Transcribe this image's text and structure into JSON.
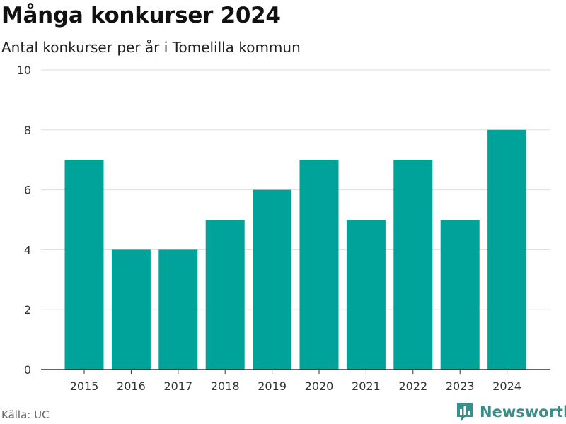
{
  "title": "Många konkurser 2024",
  "subtitle": "Antal konkurser per år i Tomelilla kommun",
  "source": "Källa: UC",
  "brand": "Newsworthy",
  "colors": {
    "bar": "#00a39a",
    "grid": "#dddddd",
    "axis": "#333333",
    "brand": "#3a8f8a"
  },
  "chart_data": {
    "type": "bar",
    "categories": [
      "2015",
      "2016",
      "2017",
      "2018",
      "2019",
      "2020",
      "2021",
      "2022",
      "2023",
      "2024"
    ],
    "values": [
      7,
      4,
      4,
      5,
      6,
      7,
      5,
      7,
      5,
      8
    ],
    "ylim": [
      0,
      10
    ],
    "yticks": [
      0,
      2,
      4,
      6,
      8,
      10
    ],
    "grid": true,
    "xlabel": "",
    "ylabel": ""
  }
}
